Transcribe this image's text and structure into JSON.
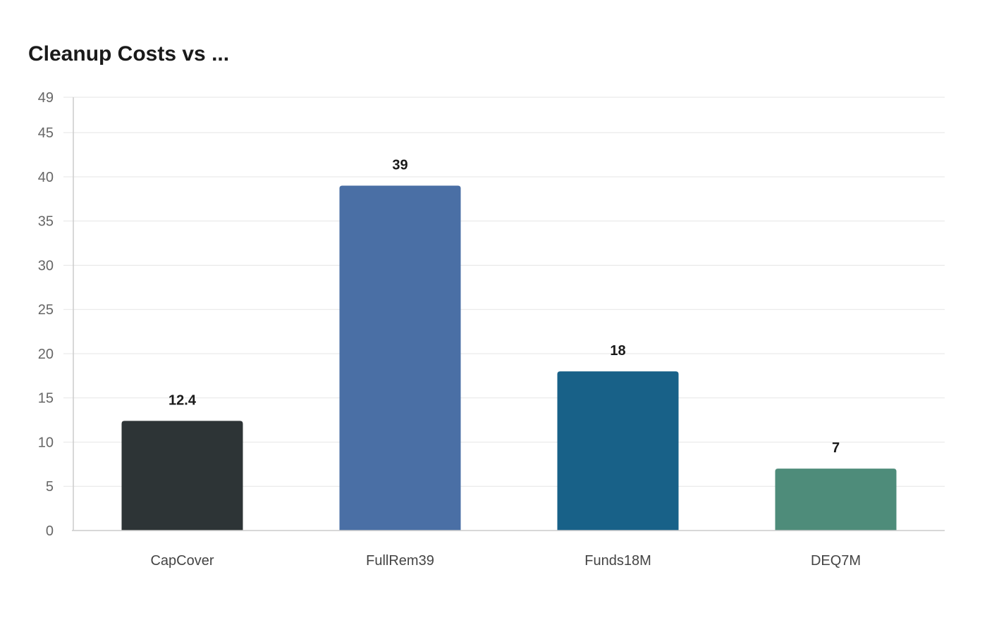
{
  "chart_data": {
    "type": "bar",
    "title": "Cleanup Costs vs ...",
    "xlabel": "",
    "ylabel": "",
    "categories": [
      "CapCover",
      "FullRem39",
      "Funds18M",
      "DEQ7M"
    ],
    "values": [
      12.4,
      39,
      18,
      7
    ],
    "value_labels": [
      "12.4",
      "39",
      "18",
      "7"
    ],
    "colors": [
      "#2d3436",
      "#4a6fa5",
      "#186188",
      "#4e8c7a"
    ],
    "ylim": [
      0,
      49
    ],
    "yticks": [
      0,
      5,
      10,
      15,
      20,
      25,
      30,
      35,
      40,
      45,
      49
    ],
    "grid": true,
    "legend": "none"
  }
}
